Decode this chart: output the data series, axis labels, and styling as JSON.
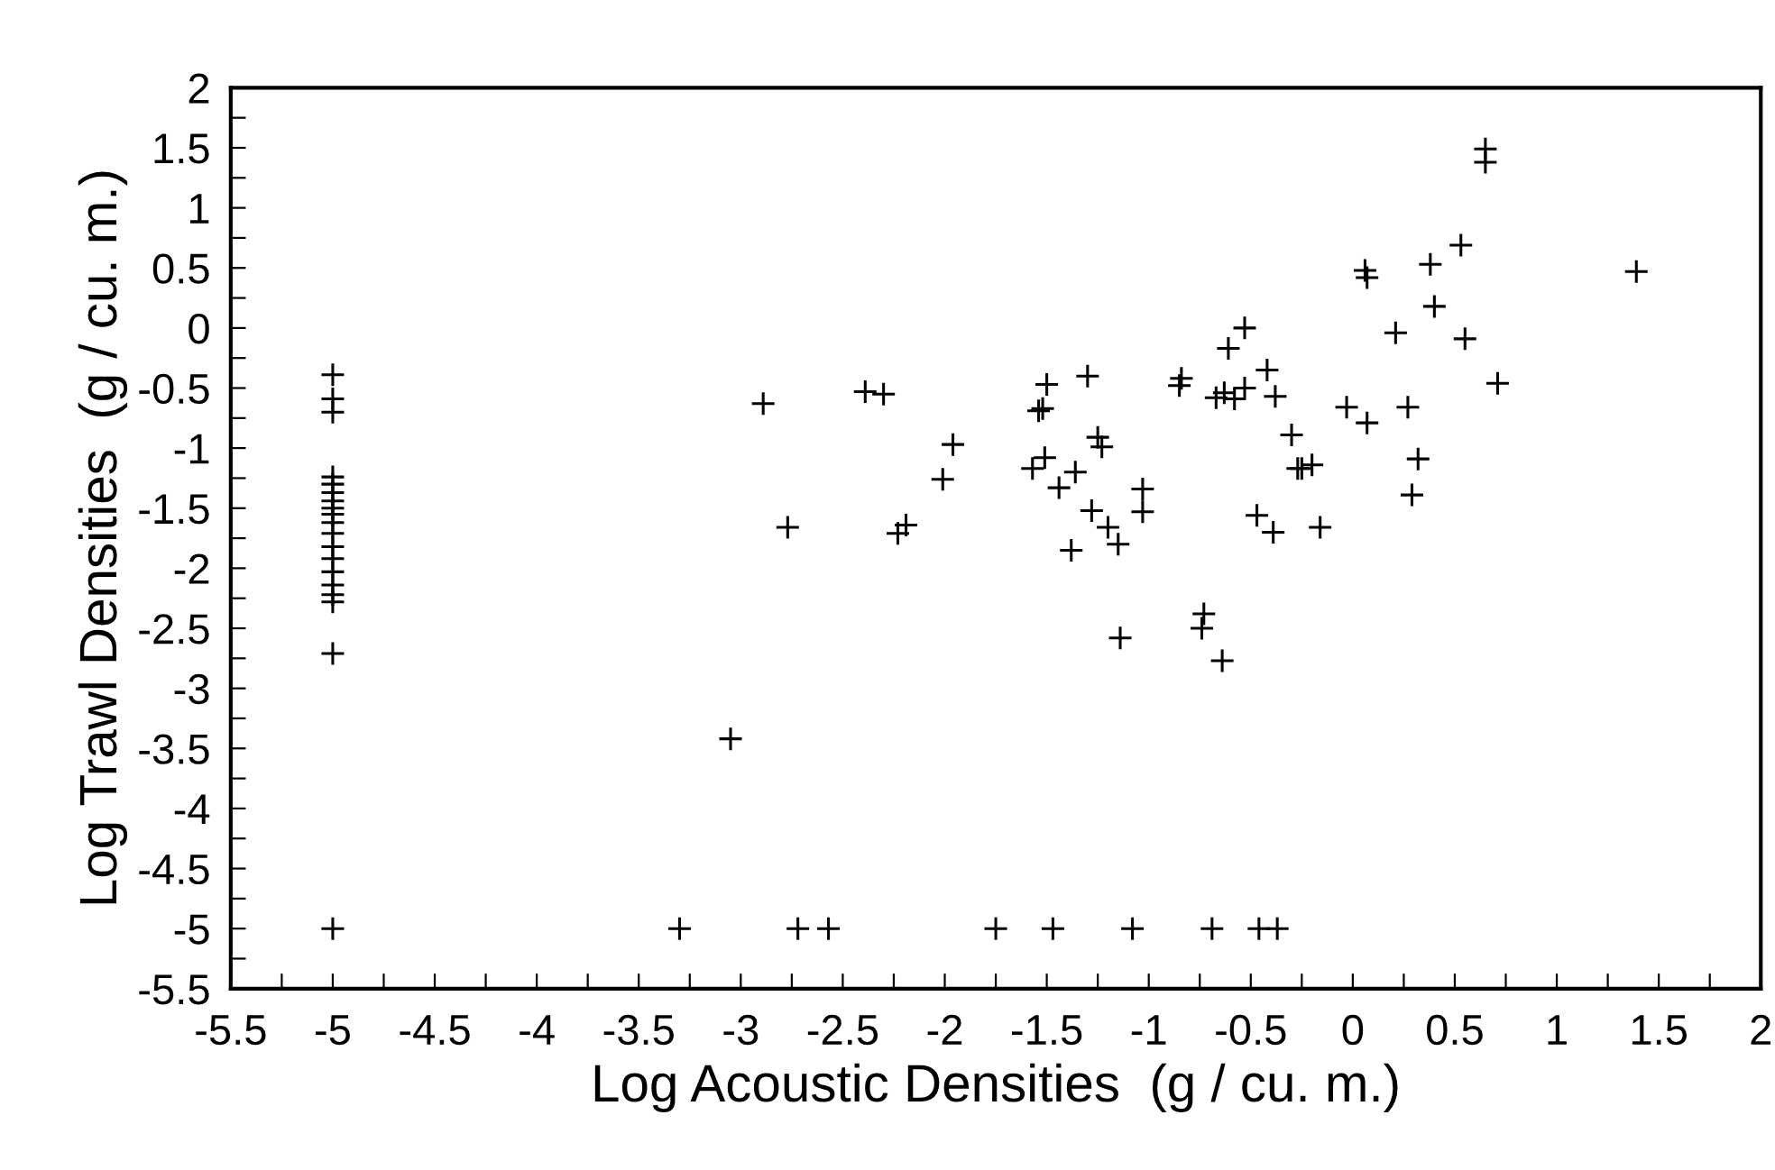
{
  "chart_data": {
    "type": "scatter",
    "xlabel": "Log Acoustic Densities  (g / cu. m.)",
    "ylabel": "Log Trawl Densities  (g / cu. m.)",
    "marker": "cross",
    "grid": false,
    "legend": false,
    "xlim": [
      -5.5,
      2
    ],
    "ylim": [
      -5.5,
      2
    ],
    "xticks": [
      -5.5,
      {
        "value": -5.25,
        "label": null
      },
      -5,
      {
        "value": -4.75,
        "label": null
      },
      -4.5,
      {
        "value": -4.25,
        "label": null
      },
      -4,
      {
        "value": -3.75,
        "label": null
      },
      -3.5,
      {
        "value": -3.25,
        "label": null
      },
      -3,
      {
        "value": -2.75,
        "label": null
      },
      -2.5,
      {
        "value": -2.25,
        "label": null
      },
      -2,
      {
        "value": -1.75,
        "label": null
      },
      -1.5,
      {
        "value": -1.25,
        "label": null
      },
      -1,
      {
        "value": -0.75,
        "label": null
      },
      -0.5,
      {
        "value": -0.25,
        "label": null
      },
      0,
      {
        "value": 0.25,
        "label": null
      },
      0.5,
      {
        "value": 0.75,
        "label": null
      },
      1,
      {
        "value": 1.25,
        "label": null
      },
      1.5,
      {
        "value": 1.75,
        "label": null
      },
      2
    ],
    "yticks": [
      -5.5,
      {
        "value": -5.25,
        "label": null
      },
      -5,
      {
        "value": -4.75,
        "label": null
      },
      -4.5,
      {
        "value": -4.25,
        "label": null
      },
      -4,
      {
        "value": -3.75,
        "label": null
      },
      -3.5,
      {
        "value": -3.25,
        "label": null
      },
      -3,
      {
        "value": -2.75,
        "label": null
      },
      -2.5,
      {
        "value": -2.25,
        "label": null
      },
      -2,
      {
        "value": -1.75,
        "label": null
      },
      -1.5,
      {
        "value": -1.25,
        "label": null
      },
      -1,
      {
        "value": -0.75,
        "label": null
      },
      -0.5,
      {
        "value": -0.25,
        "label": null
      },
      0,
      {
        "value": 0.25,
        "label": null
      },
      0.5,
      {
        "value": 0.75,
        "label": null
      },
      1,
      {
        "value": 1.25,
        "label": null
      },
      1.5,
      {
        "value": 1.75,
        "label": null
      },
      2
    ],
    "series": [
      {
        "color": "#000000",
        "x": [
          -5,
          -5,
          -5,
          -5,
          -5,
          -5,
          -5,
          -5,
          -5,
          -5,
          -5,
          -5,
          -5,
          -5,
          -5,
          -5,
          -5,
          -5,
          -5,
          -2.89,
          -2.77,
          -3.05,
          -2.39,
          -2.3,
          -2.23,
          -2.19,
          -1.96,
          -2.01,
          -1.5,
          -1.54,
          -1.52,
          -1.3,
          -1.51,
          -1.57,
          -1.44,
          -1.36,
          -1.25,
          -1.23,
          -1.28,
          -1.2,
          -1.15,
          -1.38,
          -1.03,
          -1.03,
          -1.14,
          -3.3,
          -2.72,
          -2.57,
          -1.75,
          -1.47,
          -1.08,
          -0.84,
          -0.85,
          -0.67,
          -0.63,
          -0.58,
          -0.53,
          -0.61,
          -0.53,
          -0.42,
          -0.38,
          -0.3,
          -0.27,
          -0.25,
          -0.2,
          -0.47,
          -0.39,
          -0.16,
          -0.73,
          -0.74,
          -0.64,
          -0.69,
          -0.46,
          -0.37,
          -0.03,
          0.07,
          0.06,
          0.07,
          0.21,
          0.38,
          0.4,
          0.53,
          0.55,
          0.65,
          0.65,
          0.71,
          1.39,
          0.27,
          0.32,
          0.29
        ],
        "values": [
          -0.39,
          -0.59,
          -0.7,
          -1.24,
          -1.3,
          -1.37,
          -1.44,
          -1.5,
          -1.55,
          -1.62,
          -1.71,
          -1.82,
          -1.92,
          -2.03,
          -2.14,
          -2.22,
          -2.28,
          -2.71,
          -5,
          -0.63,
          -1.66,
          -3.42,
          -0.53,
          -0.55,
          -1.71,
          -1.64,
          -0.97,
          -1.26,
          -0.47,
          -0.69,
          -0.67,
          -0.4,
          -1.08,
          -1.17,
          -1.33,
          -1.2,
          -0.91,
          -0.99,
          -1.52,
          -1.66,
          -1.8,
          -1.85,
          -1.34,
          -1.53,
          -2.58,
          -5,
          -5,
          -5,
          -5,
          -5,
          -5,
          -0.42,
          -0.48,
          -0.58,
          -0.54,
          -0.59,
          -0.5,
          -0.17,
          0,
          -0.35,
          -0.57,
          -0.89,
          -1.17,
          -1.17,
          -1.14,
          -1.56,
          -1.7,
          -1.66,
          -2.38,
          -2.5,
          -2.77,
          -5,
          -5,
          -5,
          -0.66,
          -0.79,
          0.48,
          0.42,
          -0.04,
          0.53,
          0.18,
          0.69,
          -0.09,
          1.49,
          1.38,
          -0.46,
          0.47,
          -0.66,
          -1.09,
          -1.39
        ]
      }
    ]
  }
}
